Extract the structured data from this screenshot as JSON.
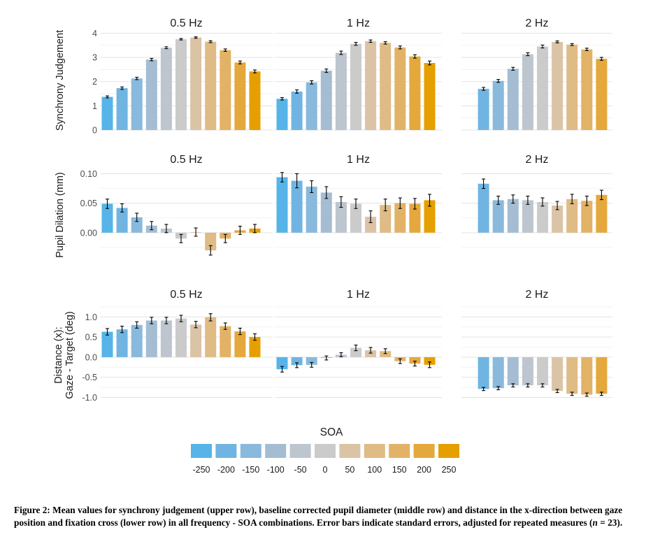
{
  "colors": [
    "#56b4e9",
    "#70b5e2",
    "#89b9dc",
    "#a4bdd2",
    "#bdc5ce",
    "#cbcbcb",
    "#dbc3a6",
    "#dfbb85",
    "#e2b266",
    "#e4a83c",
    "#e69f00"
  ],
  "chart_data": {
    "type": "bar",
    "layout": "facet grid, 3 rows x 3 columns",
    "columns": [
      "0.5 Hz",
      "1 Hz",
      "2 Hz"
    ],
    "rows": [
      {
        "ylabel": "Synchrony Judgement",
        "ylim": [
          0,
          4.1
        ],
        "yticks": [
          0,
          1,
          2,
          3,
          4
        ],
        "panels": [
          {
            "title": "0.5 Hz",
            "soa": [
              -250,
              -200,
              -150,
              -100,
              -50,
              0,
              50,
              100,
              150,
              200,
              250
            ],
            "values": [
              1.37,
              1.73,
              2.13,
              2.91,
              3.4,
              3.75,
              3.82,
              3.65,
              3.3,
              2.79,
              2.42
            ],
            "errors": [
              0.04,
              0.05,
              0.05,
              0.05,
              0.04,
              0.03,
              0.03,
              0.04,
              0.05,
              0.06,
              0.06
            ]
          },
          {
            "title": "1 Hz",
            "soa": [
              -250,
              -200,
              -150,
              -100,
              -50,
              0,
              50,
              100,
              150,
              200,
              250
            ],
            "values": [
              1.29,
              1.59,
              1.97,
              2.45,
              3.19,
              3.56,
              3.67,
              3.6,
              3.41,
              3.04,
              2.77
            ],
            "errors": [
              0.05,
              0.07,
              0.07,
              0.07,
              0.07,
              0.06,
              0.05,
              0.05,
              0.06,
              0.07,
              0.08
            ]
          },
          {
            "title": "2 Hz",
            "soa": [
              -200,
              -150,
              -100,
              -50,
              0,
              50,
              100,
              150,
              200
            ],
            "values": [
              1.7,
              2.03,
              2.53,
              3.13,
              3.45,
              3.64,
              3.53,
              3.33,
              2.94
            ],
            "errors": [
              0.06,
              0.06,
              0.06,
              0.06,
              0.06,
              0.04,
              0.04,
              0.05,
              0.06
            ]
          }
        ]
      },
      {
        "ylabel": "Pupil Dilation (mm)",
        "ylim": [
          -0.05,
          0.11
        ],
        "yticks": [
          0.0,
          0.05,
          0.1
        ],
        "ytick_labels": [
          "0.00",
          "0.05",
          "0.10"
        ],
        "panels": [
          {
            "title": "0.5 Hz",
            "soa": [
              -250,
              -200,
              -150,
              -100,
              -50,
              0,
              50,
              100,
              150,
              200,
              250
            ],
            "values": [
              0.049,
              0.042,
              0.026,
              0.012,
              0.007,
              -0.01,
              0.001,
              -0.03,
              -0.01,
              0.004,
              0.007
            ],
            "errors": [
              0.008,
              0.007,
              0.007,
              0.007,
              0.007,
              0.007,
              0.007,
              0.008,
              0.007,
              0.007,
              0.007
            ]
          },
          {
            "title": "1 Hz",
            "soa": [
              -250,
              -200,
              -150,
              -100,
              -50,
              0,
              50,
              100,
              150,
              200,
              250
            ],
            "values": [
              0.094,
              0.088,
              0.078,
              0.068,
              0.052,
              0.049,
              0.027,
              0.047,
              0.05,
              0.049,
              0.055
            ],
            "errors": [
              0.008,
              0.012,
              0.01,
              0.01,
              0.009,
              0.008,
              0.01,
              0.01,
              0.009,
              0.009,
              0.01
            ]
          },
          {
            "title": "2 Hz",
            "soa": [
              -200,
              -150,
              -100,
              -50,
              0,
              50,
              100,
              150,
              200
            ],
            "values": [
              0.083,
              0.055,
              0.057,
              0.055,
              0.052,
              0.046,
              0.057,
              0.054,
              0.064
            ],
            "errors": [
              0.008,
              0.007,
              0.007,
              0.007,
              0.007,
              0.007,
              0.008,
              0.008,
              0.008
            ]
          }
        ]
      },
      {
        "ylabel": "Distance (x):\nGaze - Target (deg)",
        "ylim": [
          -1.2,
          1.3
        ],
        "yticks": [
          -1.0,
          -0.5,
          0.0,
          0.5,
          1.0
        ],
        "ytick_labels": [
          "-1.0",
          "-0.5",
          "0.0",
          "0.5",
          "1.0"
        ],
        "panels": [
          {
            "title": "0.5 Hz",
            "soa": [
              -250,
              -200,
              -150,
              -100,
              -50,
              0,
              50,
              100,
              150,
              200,
              250
            ],
            "values": [
              0.63,
              0.69,
              0.8,
              0.91,
              0.91,
              0.96,
              0.81,
              0.99,
              0.77,
              0.64,
              0.5
            ],
            "errors": [
              0.08,
              0.08,
              0.08,
              0.08,
              0.08,
              0.08,
              0.08,
              0.09,
              0.08,
              0.08,
              0.08
            ]
          },
          {
            "title": "1 Hz",
            "soa": [
              -250,
              -200,
              -150,
              -100,
              -50,
              0,
              50,
              100,
              150,
              200,
              250
            ],
            "values": [
              -0.3,
              -0.2,
              -0.19,
              -0.02,
              0.06,
              0.23,
              0.17,
              0.15,
              -0.1,
              -0.16,
              -0.19
            ],
            "errors": [
              0.07,
              0.06,
              0.06,
              0.05,
              0.05,
              0.07,
              0.07,
              0.06,
              0.06,
              0.06,
              0.07
            ]
          },
          {
            "title": "2 Hz",
            "soa": [
              -200,
              -150,
              -100,
              -50,
              0,
              50,
              100,
              150,
              200
            ],
            "values": [
              -0.79,
              -0.77,
              -0.7,
              -0.7,
              -0.7,
              -0.84,
              -0.91,
              -0.93,
              -0.91
            ],
            "errors": [
              0.04,
              0.04,
              0.04,
              0.04,
              0.04,
              0.04,
              0.04,
              0.04,
              0.04
            ]
          }
        ]
      }
    ],
    "legend": {
      "title": "SOA",
      "position": "bottom",
      "labels": [
        "-250",
        "-200",
        "-150",
        "-100",
        "-50",
        "0",
        "50",
        "100",
        "150",
        "200",
        "250"
      ]
    },
    "grid": true
  },
  "caption": {
    "label": "Figure 2:",
    "text_before_n": " Mean values for synchrony judgement (upper row), baseline corrected pupil diameter (middle row) and distance in the x-direction between gaze position and fixation cross (lower row) in all frequency - SOA combinations. Error bars indicate standard errors, adjusted for repeated measures (",
    "n_symbol": "n",
    "n_value": " = 23",
    "text_after_n": ")."
  }
}
